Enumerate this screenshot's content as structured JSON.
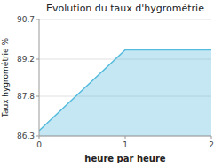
{
  "chart_data": {
    "type": "area",
    "title": "Evolution du taux d'hygrométrie",
    "xlabel": "heure par heure",
    "ylabel": "Taux hygrométrie %",
    "x": [
      0,
      1,
      2
    ],
    "values": [
      86.5,
      89.55,
      89.55
    ],
    "color": "#55bbdd",
    "xlim": [
      0,
      2
    ],
    "ylim": [
      86.3,
      90.7
    ],
    "xticks": [
      0,
      1,
      2
    ],
    "yticks": [
      86.3,
      87.8,
      89.2,
      90.7
    ],
    "grid": true
  }
}
